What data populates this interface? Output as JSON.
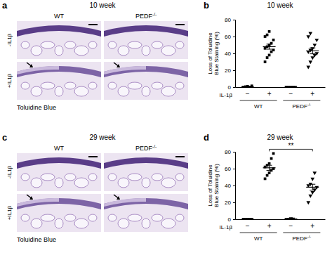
{
  "image_panels": [
    {
      "label": "a",
      "title": "10 week",
      "columns": [
        "WT",
        "PEDF-/-"
      ],
      "rows": [
        "-IL1β",
        "+IL1β"
      ],
      "stain": "Toluidine Blue"
    },
    {
      "label": "c",
      "title": "29 week",
      "columns": [
        "WT",
        "PEDF-/-"
      ],
      "rows": [
        "-IL1β",
        "+IL1β"
      ],
      "stain": "Toluidine Blue"
    }
  ],
  "chart_data": [
    {
      "panel": "b",
      "type": "dot",
      "title": "10 week",
      "y_label": [
        "Loss of Toluidine",
        "Blue Staining (%)"
      ],
      "x_label": "IL-1β",
      "categories": [
        "−",
        "+",
        "−",
        "+"
      ],
      "category_groups": [
        {
          "label": "WT",
          "span": [
            0,
            1
          ]
        },
        {
          "label": "PEDF-/-",
          "span": [
            2,
            3
          ]
        }
      ],
      "ylim": [
        0,
        80
      ],
      "yticks": [
        0,
        20,
        40,
        60,
        80
      ],
      "color": "#000000",
      "groups": [
        {
          "marker": "square",
          "values": [
            0,
            0.5,
            1,
            0,
            1.5
          ],
          "mean": 0.6,
          "error": 0.3
        },
        {
          "marker": "square",
          "values": [
            30,
            35,
            38,
            42,
            44,
            46,
            48,
            50,
            52,
            56,
            60,
            62,
            66
          ],
          "mean": 48,
          "error": 3
        },
        {
          "marker": "triangle-down",
          "values": [
            0,
            0,
            0,
            0,
            0,
            0
          ],
          "mean": 0,
          "error": 0
        },
        {
          "marker": "triangle-down",
          "values": [
            24,
            30,
            35,
            38,
            40,
            42,
            44,
            46,
            50,
            56,
            60,
            64
          ],
          "mean": 43,
          "error": 3.5
        }
      ]
    },
    {
      "panel": "d",
      "type": "dot",
      "title": "29 week",
      "y_label": [
        "Loss of Toluidine",
        "Blue Staining (%)"
      ],
      "x_label": "IL-1β",
      "categories": [
        "−",
        "+",
        "−",
        "+"
      ],
      "category_groups": [
        {
          "label": "WT",
          "span": [
            0,
            1
          ]
        },
        {
          "label": "PEDF-/-",
          "span": [
            2,
            3
          ]
        }
      ],
      "ylim": [
        0,
        80
      ],
      "yticks": [
        0,
        20,
        40,
        60,
        80
      ],
      "color": "#000000",
      "groups": [
        {
          "marker": "square",
          "values": [
            0,
            0,
            0,
            0,
            0
          ],
          "mean": 0,
          "error": 0
        },
        {
          "marker": "square",
          "values": [
            48,
            52,
            55,
            58,
            60,
            62,
            64,
            66,
            72,
            78
          ],
          "mean": 61,
          "error": 3
        },
        {
          "marker": "triangle-down",
          "values": [
            0,
            0,
            1,
            0.5
          ],
          "mean": 0.4,
          "error": 0.2
        },
        {
          "marker": "triangle-down",
          "values": [
            20,
            28,
            32,
            35,
            38,
            40,
            42,
            48,
            55
          ],
          "mean": 38,
          "error": 3.5
        }
      ],
      "annotation": {
        "text": "**",
        "between": [
          1,
          3
        ]
      }
    }
  ]
}
